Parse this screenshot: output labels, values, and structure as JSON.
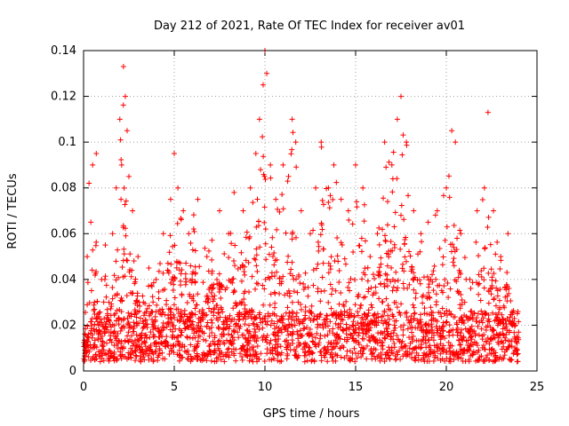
{
  "chart_data": {
    "type": "scatter",
    "title": "Day 212 of 2021, Rate Of TEC Index for receiver av01",
    "xlabel": "GPS time / hours",
    "ylabel": "ROTI / TECUs",
    "xlim": [
      0,
      25
    ],
    "ylim": [
      0,
      0.14
    ],
    "xticks": [
      "0",
      "5",
      "10",
      "15",
      "20",
      "25"
    ],
    "yticks": [
      "0",
      "0.02",
      "0.04",
      "0.06",
      "0.08",
      "0.1",
      "0.12",
      "0.14"
    ],
    "grid": true,
    "marker": "plus",
    "color": "#ff0000",
    "data_range_x": [
      0,
      24
    ],
    "series": [
      {
        "points": [
          [
            0.1,
            0.012
          ],
          [
            0.2,
            0.05
          ],
          [
            0.3,
            0.082
          ],
          [
            0.4,
            0.065
          ],
          [
            0.5,
            0.09
          ],
          [
            0.6,
            0.03
          ],
          [
            0.7,
            0.095
          ],
          [
            0.8,
            0.02
          ],
          [
            1.0,
            0.04
          ],
          [
            1.2,
            0.055
          ],
          [
            1.4,
            0.03
          ],
          [
            1.6,
            0.06
          ],
          [
            1.8,
            0.08
          ],
          [
            2.0,
            0.11
          ],
          [
            2.1,
            0.09
          ],
          [
            2.2,
            0.133
          ],
          [
            2.3,
            0.12
          ],
          [
            2.4,
            0.105
          ],
          [
            2.5,
            0.085
          ],
          [
            2.7,
            0.07
          ],
          [
            3.0,
            0.05
          ],
          [
            3.3,
            0.03
          ],
          [
            3.6,
            0.045
          ],
          [
            4.0,
            0.04
          ],
          [
            4.4,
            0.06
          ],
          [
            4.8,
            0.075
          ],
          [
            5.0,
            0.095
          ],
          [
            5.2,
            0.08
          ],
          [
            5.5,
            0.07
          ],
          [
            5.8,
            0.06
          ],
          [
            6.3,
            0.075
          ],
          [
            6.8,
            0.05
          ],
          [
            7.5,
            0.07
          ],
          [
            8.0,
            0.06
          ],
          [
            8.3,
            0.078
          ],
          [
            8.8,
            0.07
          ],
          [
            9.2,
            0.08
          ],
          [
            9.5,
            0.095
          ],
          [
            9.7,
            0.11
          ],
          [
            9.9,
            0.125
          ],
          [
            10.0,
            0.14
          ],
          [
            10.1,
            0.13
          ],
          [
            10.3,
            0.09
          ],
          [
            10.6,
            0.075
          ],
          [
            11.0,
            0.09
          ],
          [
            11.3,
            0.085
          ],
          [
            11.5,
            0.11
          ],
          [
            11.7,
            0.1
          ],
          [
            12.0,
            0.07
          ],
          [
            12.5,
            0.06
          ],
          [
            12.8,
            0.08
          ],
          [
            13.1,
            0.1
          ],
          [
            13.5,
            0.08
          ],
          [
            13.8,
            0.09
          ],
          [
            14.2,
            0.075
          ],
          [
            14.6,
            0.07
          ],
          [
            15.0,
            0.09
          ],
          [
            15.4,
            0.08
          ],
          [
            15.8,
            0.05
          ],
          [
            16.2,
            0.06
          ],
          [
            16.6,
            0.1
          ],
          [
            17.0,
            0.09
          ],
          [
            17.3,
            0.11
          ],
          [
            17.5,
            0.12
          ],
          [
            17.8,
            0.1
          ],
          [
            18.2,
            0.07
          ],
          [
            18.6,
            0.06
          ],
          [
            19.0,
            0.065
          ],
          [
            19.5,
            0.07
          ],
          [
            20.0,
            0.08
          ],
          [
            20.3,
            0.105
          ],
          [
            20.5,
            0.1
          ],
          [
            20.8,
            0.06
          ],
          [
            21.3,
            0.04
          ],
          [
            21.7,
            0.07
          ],
          [
            22.1,
            0.08
          ],
          [
            22.3,
            0.113
          ],
          [
            22.6,
            0.07
          ],
          [
            23.0,
            0.05
          ],
          [
            23.4,
            0.06
          ],
          [
            23.8,
            0.02
          ]
        ]
      }
    ]
  }
}
